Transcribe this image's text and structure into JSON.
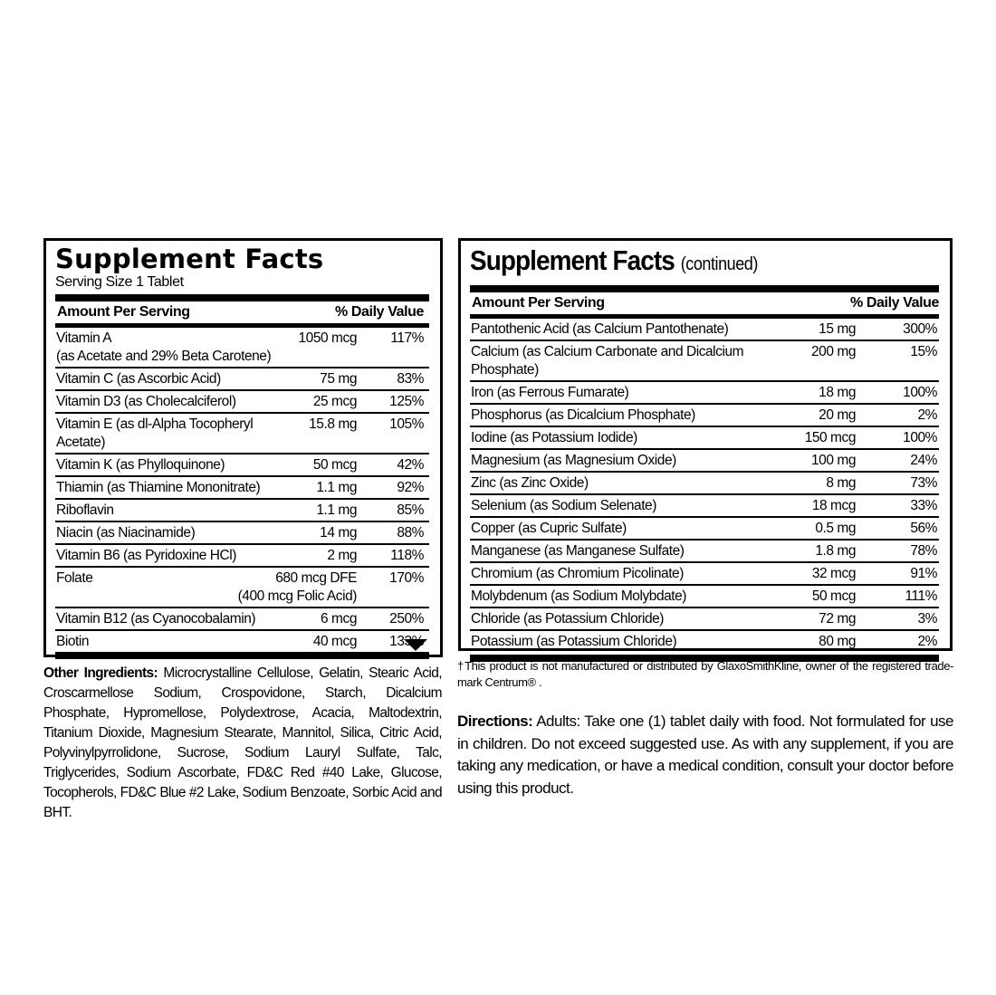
{
  "left_panel": {
    "title": "Supplement Facts",
    "serving_size": "Serving Size 1 Tablet",
    "header_amount": "Amount Per Serving",
    "header_dv": "% Daily Value",
    "rows": [
      {
        "name": "Vitamin A",
        "note": "(as Acetate and 29% Beta Carotene)",
        "amount": "1050 mcg",
        "dv": "117%"
      },
      {
        "name": "Vitamin C (as Ascorbic Acid)",
        "amount": "75 mg",
        "dv": "83%"
      },
      {
        "name": "Vitamin D3 (as Cholecalciferol)",
        "amount": "25 mcg",
        "dv": "125%"
      },
      {
        "name": "Vitamin E (as dl-Alpha Tocopheryl Acetate)",
        "amount": "15.8 mg",
        "dv": "105%"
      },
      {
        "name": "Vitamin K (as Phylloquinone)",
        "amount": "50 mcg",
        "dv": "42%"
      },
      {
        "name": "Thiamin (as Thiamine Mononitrate)",
        "amount": "1.1 mg",
        "dv": "92%"
      },
      {
        "name": "Riboflavin",
        "amount": "1.1 mg",
        "dv": "85%"
      },
      {
        "name": "Niacin (as Niacinamide)",
        "amount": "14 mg",
        "dv": "88%"
      },
      {
        "name": "Vitamin B6 (as Pyridoxine HCl)",
        "amount": "2 mg",
        "dv": "118%"
      },
      {
        "name": "Folate",
        "amount": "680 mcg DFE",
        "amount_note": "(400 mcg Folic Acid)",
        "dv": "170%"
      },
      {
        "name": "Vitamin B12 (as Cyanocobalamin)",
        "amount": "6 mcg",
        "dv": "250%"
      },
      {
        "name": "Biotin",
        "amount": "40 mcg",
        "dv": "133%"
      }
    ],
    "continued_icon": "triangle-down-icon"
  },
  "right_panel": {
    "title": "Supplement Facts",
    "title_suffix": "(continued)",
    "header_amount": "Amount Per Serving",
    "header_dv": "% Daily Value",
    "rows": [
      {
        "name": "Pantothenic Acid (as Calcium Pantothenate)",
        "amount": "15 mg",
        "dv": "300%"
      },
      {
        "name": "Calcium (as Calcium Carbonate and Dicalcium Phosphate)",
        "amount": "200 mg",
        "dv": "15%"
      },
      {
        "name": "Iron (as Ferrous Fumarate)",
        "amount": "18 mg",
        "dv": "100%"
      },
      {
        "name": "Phosphorus (as Dicalcium Phosphate)",
        "amount": "20 mg",
        "dv": "2%"
      },
      {
        "name": "Iodine (as Potassium Iodide)",
        "amount": "150 mcg",
        "dv": "100%"
      },
      {
        "name": "Magnesium (as Magnesium Oxide)",
        "amount": "100 mg",
        "dv": "24%"
      },
      {
        "name": "Zinc (as Zinc Oxide)",
        "amount": "8 mg",
        "dv": "73%"
      },
      {
        "name": "Selenium (as Sodium Selenate)",
        "amount": "18 mcg",
        "dv": "33%"
      },
      {
        "name": "Copper (as Cupric Sulfate)",
        "amount": "0.5 mg",
        "dv": "56%"
      },
      {
        "name": "Manganese (as Manganese Sulfate)",
        "amount": "1.8 mg",
        "dv": "78%"
      },
      {
        "name": "Chromium (as Chromium Picolinate)",
        "amount": "32 mcg",
        "dv": "91%"
      },
      {
        "name": "Molybdenum (as Sodium Molybdate)",
        "amount": "50 mcg",
        "dv": "111%"
      },
      {
        "name": "Chloride (as Potassium Chloride)",
        "amount": "72 mg",
        "dv": "3%"
      },
      {
        "name": "Potassium (as Potassium Chloride)",
        "amount": "80 mg",
        "dv": "2%"
      }
    ]
  },
  "other_ingredients": {
    "label": "Other Ingredients:",
    "text": " Microcrystalline Cellulose, Gelatin, Stearic Acid, Croscarmellose Sodium, Crospovidone, Starch, Dicalcium Phosphate, Hypromellose, Polydextrose, Acacia, Maltodextrin, Titanium Dioxide, Magnesium Stearate, Mannitol, Silica, Citric Acid, Polyvinylpyrrolidone, Sucrose, Sodium Lauryl Sulfate, Talc, Triglycerides, Sodium Ascorbate, FD&C Red #40 Lake, Glucose, Tocopherols, FD&C Blue #2 Lake, Sodium Benzoate, Sorbic Acid and BHT."
  },
  "footnote": "†This product is not manufactured or distributed by GlaxoSmithKline, owner of the registered trade-mark Centrum® .",
  "directions": {
    "label": "Directions:",
    "text": " Adults: Take one (1) tablet daily with food. Not formulated for use in children. Do not exceed suggested use. As with any supplement, if you are taking any medication, or have a medical condition, consult your doctor before using this product."
  }
}
